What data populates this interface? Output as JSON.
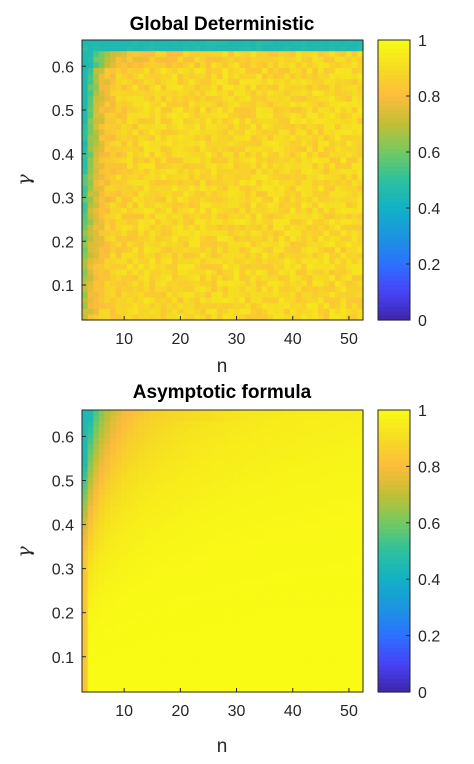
{
  "chart_data": [
    {
      "type": "heatmap",
      "title": "Global Deterministic",
      "xlabel": "n",
      "ylabel": "γ",
      "x_range": [
        3,
        52
      ],
      "y_range": [
        0.02,
        0.66
      ],
      "x_ticks": [
        "10",
        "20",
        "30",
        "40",
        "50"
      ],
      "y_ticks": [
        "0.1",
        "0.2",
        "0.3",
        "0.4",
        "0.5",
        "0.6"
      ],
      "colorbar": {
        "min": 0,
        "max": 1,
        "ticks": [
          "0",
          "0.2",
          "0.4",
          "0.6",
          "0.8",
          "1"
        ]
      },
      "model": "noisy",
      "description_values": {
        "interior_level": 0.88,
        "top_row_level": 0.45,
        "noise": 0.05
      }
    },
    {
      "type": "heatmap",
      "title": "Asymptotic formula",
      "xlabel": "n",
      "ylabel": "γ",
      "x_range": [
        3,
        52
      ],
      "y_range": [
        0.02,
        0.66
      ],
      "x_ticks": [
        "10",
        "20",
        "30",
        "40",
        "50"
      ],
      "y_ticks": [
        "0.1",
        "0.2",
        "0.3",
        "0.4",
        "0.5",
        "0.6"
      ],
      "colorbar": {
        "min": 0,
        "max": 1,
        "ticks": [
          "0",
          "0.2",
          "0.4",
          "0.6",
          "0.8",
          "1"
        ]
      },
      "model": "smooth",
      "description_values": {
        "interior_level": 1.0,
        "corner_level": 0.45
      }
    }
  ],
  "colormap": [
    "#3e26a8",
    "#4743f8",
    "#2d71fe",
    "#1b96e0",
    "#12b1c5",
    "#2dc19f",
    "#73c961",
    "#c3bf35",
    "#fcbc3c",
    "#f6dd22",
    "#f9fb15"
  ]
}
